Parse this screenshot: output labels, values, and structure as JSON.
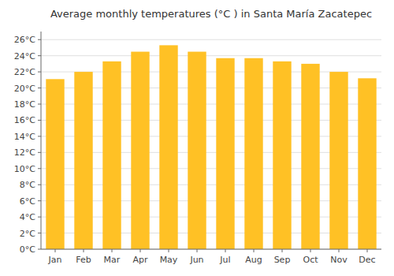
{
  "chart_data": {
    "type": "bar",
    "title": "Average monthly temperatures (°C ) in Santa María Zacatepec",
    "categories": [
      "Jan",
      "Feb",
      "Mar",
      "Apr",
      "May",
      "Jun",
      "Jul",
      "Aug",
      "Sep",
      "Oct",
      "Nov",
      "Dec"
    ],
    "values": [
      21.1,
      22.0,
      23.3,
      24.5,
      25.3,
      24.5,
      23.7,
      23.7,
      23.3,
      23.0,
      22.0,
      21.2
    ],
    "color": "#FFC125",
    "ylim": [
      0,
      27
    ],
    "yticks": [
      {
        "value": 0,
        "label": "0°C"
      },
      {
        "value": 2,
        "label": "2°C"
      },
      {
        "value": 4,
        "label": "4°C"
      },
      {
        "value": 6,
        "label": "6°C"
      },
      {
        "value": 8,
        "label": "8°C"
      },
      {
        "value": 10,
        "label": "10°C"
      },
      {
        "value": 12,
        "label": "12°C"
      },
      {
        "value": 14,
        "label": "14°C"
      },
      {
        "value": 16,
        "label": "16°C"
      },
      {
        "value": 18,
        "label": "18°C"
      },
      {
        "value": 20,
        "label": "20°C"
      },
      {
        "value": 22,
        "label": "22°C"
      },
      {
        "value": 24,
        "label": "24°C"
      },
      {
        "value": 26,
        "label": "26°C"
      }
    ],
    "grid": true
  }
}
